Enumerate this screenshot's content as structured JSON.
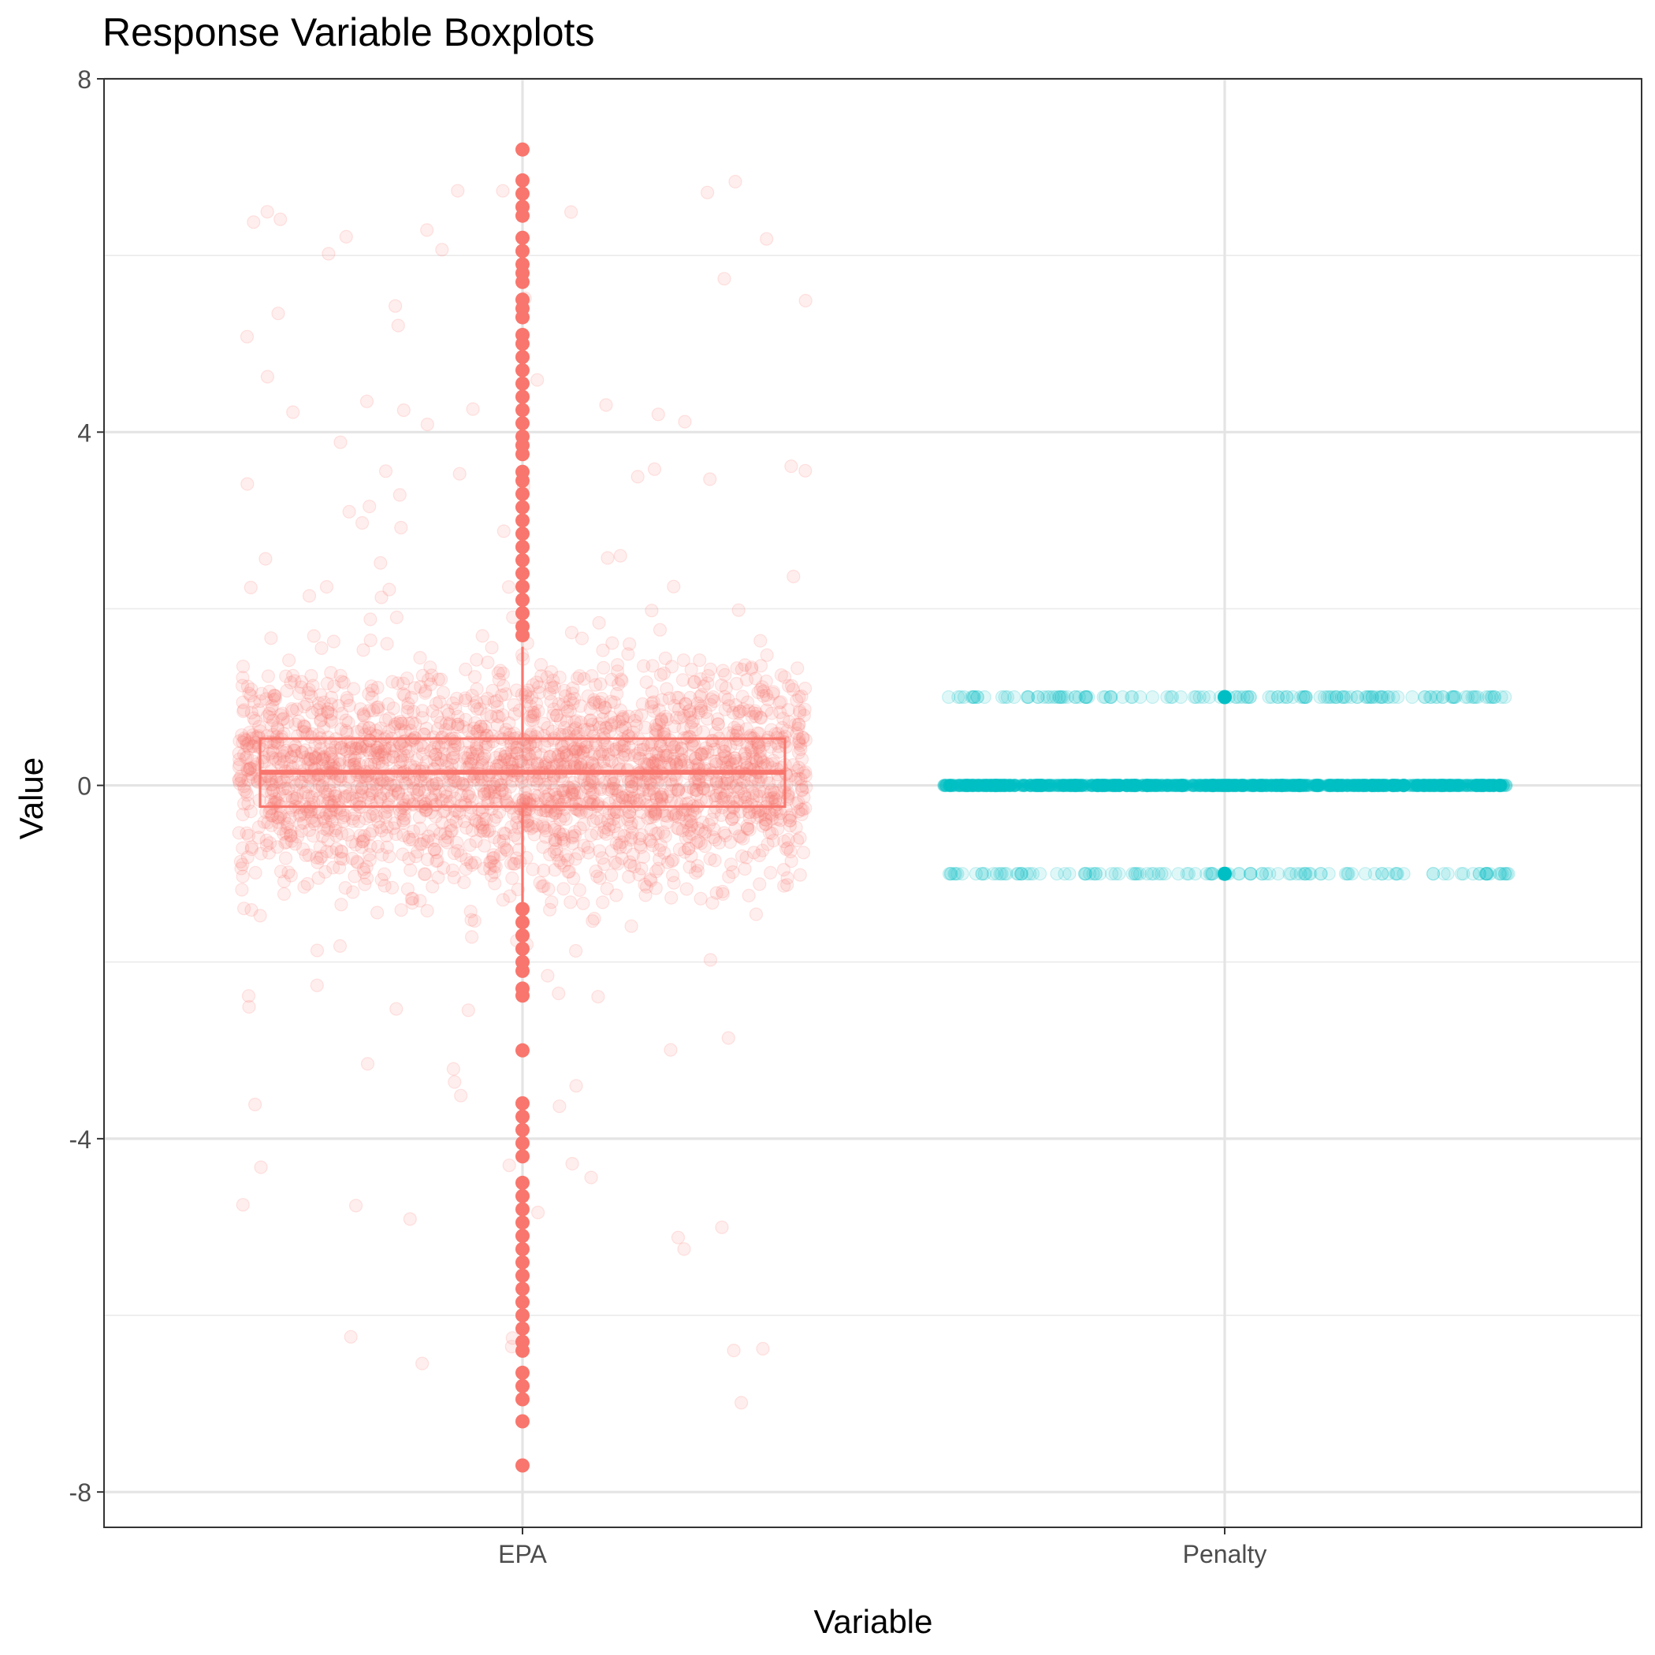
{
  "chart_data": {
    "type": "boxplot",
    "title": "Response Variable Boxplots",
    "xlabel": "Variable",
    "ylabel": "Value",
    "categories": [
      "EPA",
      "Penalty"
    ],
    "ylim": [
      -8.4,
      8.0
    ],
    "y_ticks": [
      -8,
      -4,
      0,
      4,
      8
    ],
    "grid": true,
    "legend": "none",
    "colors": {
      "EPA": "#F8766D",
      "Penalty": "#00BFC4"
    },
    "boxplots": [
      {
        "name": "EPA",
        "q1": -0.24,
        "median": 0.15,
        "q3": 0.53,
        "whisker_low": -1.37,
        "whisker_high": 1.57,
        "outliers_high": [
          7.2,
          6.85,
          6.7,
          6.55,
          6.45,
          6.2,
          6.05,
          5.9,
          5.8,
          5.7,
          5.5,
          5.4,
          5.3,
          5.1,
          5.0,
          4.85,
          4.7,
          4.55,
          4.4,
          4.25,
          4.1,
          3.95,
          3.85,
          3.75,
          3.55,
          3.45,
          3.3,
          3.15,
          3.0,
          2.85,
          2.7,
          2.55,
          2.4,
          2.25,
          2.1,
          1.95,
          1.8,
          1.7
        ],
        "outliers_low": [
          -1.4,
          -1.55,
          -1.7,
          -1.85,
          -2.0,
          -2.1,
          -2.3,
          -2.38,
          -3.0,
          -3.6,
          -3.75,
          -3.9,
          -4.05,
          -4.2,
          -4.5,
          -4.65,
          -4.8,
          -4.95,
          -5.1,
          -5.25,
          -5.4,
          -5.55,
          -5.7,
          -5.85,
          -6.0,
          -6.15,
          -6.3,
          -6.4,
          -6.65,
          -6.8,
          -6.95,
          -7.2,
          -7.7
        ]
      },
      {
        "name": "Penalty",
        "q1": 0,
        "median": 0,
        "q3": 0,
        "whisker_low": 0,
        "whisker_high": 0,
        "outliers_high": [
          1
        ],
        "outliers_low": [
          -1
        ]
      }
    ],
    "jitter_points": [
      {
        "category": "EPA",
        "distribution": "centered near 0, mostly within -2 to 2, sparse tails to about -7.7 and 7.2",
        "alpha": 0.15
      },
      {
        "category": "Penalty",
        "values": [
          -1,
          0,
          1
        ],
        "alpha": 0.15
      }
    ]
  }
}
